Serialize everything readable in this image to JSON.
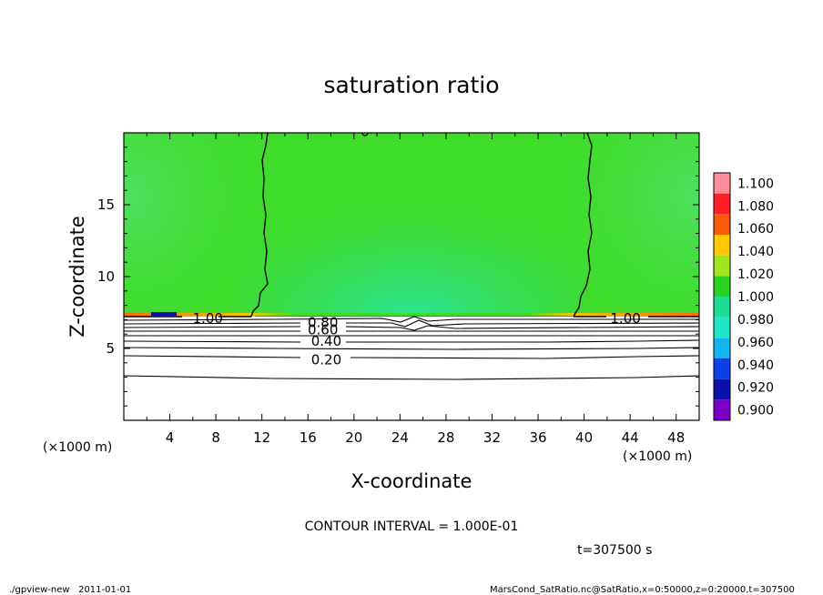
{
  "chart_data": {
    "type": "heatmap",
    "title": "saturation ratio",
    "xlabel": "X-coordinate",
    "ylabel": "Z-coordinate",
    "x_unit": "(×1000 m)",
    "z_unit": "(×1000 m)",
    "xlim": [
      0,
      50
    ],
    "ylim": [
      0,
      20
    ],
    "x_ticks": [
      "4",
      "8",
      "12",
      "16",
      "20",
      "24",
      "28",
      "32",
      "36",
      "40",
      "44",
      "48"
    ],
    "y_ticks": [
      "5",
      "10",
      "15"
    ],
    "colorbar_levels": [
      "0.900",
      "0.920",
      "0.940",
      "0.960",
      "0.980",
      "1.000",
      "1.020",
      "1.040",
      "1.060",
      "1.080",
      "1.100"
    ],
    "colorbar_colors": [
      "#7a00c8",
      "#0a10a8",
      "#0a40e8",
      "#14b4f0",
      "#1ee6c8",
      "#1edc96",
      "#28d21e",
      "#a0e61e",
      "#ffc800",
      "#ff5a0a",
      "#ff1e28",
      "#ff8c96"
    ],
    "contour_labels": [
      {
        "text": "1.00",
        "x": 7.3,
        "z": 7.1
      },
      {
        "text": "1.00",
        "x": 43.6,
        "z": 7.1
      },
      {
        "text": "0.80",
        "x": 17.3,
        "z": 6.8
      },
      {
        "text": "0.60",
        "x": 17.3,
        "z": 6.3
      },
      {
        "text": "0.40",
        "x": 17.6,
        "z": 5.5
      },
      {
        "text": "0.20",
        "x": 17.6,
        "z": 4.2
      }
    ],
    "contour_interval_text": "CONTOUR INTERVAL = 1.000E-01",
    "time_text": "t=307500 s"
  },
  "footer": {
    "left": "./gpview-new   2011-01-01",
    "right": "MarsCond_SatRatio.nc@SatRatio,x=0:50000,z=0:20000,t=307500"
  }
}
